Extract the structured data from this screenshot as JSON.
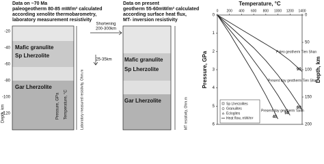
{
  "left_panel": {
    "title": [
      "Data on ~70 Ma",
      "paleogeotherm 80-85 mW/m² calculated",
      "according xenolite thermobarometry,",
      "laboratory measurement resistivity"
    ],
    "layers": [
      "Mafic granulite",
      "Sp Lherzolite",
      "Gar Lherzolite"
    ],
    "depth_ticks": [
      "-20",
      "-40",
      "-60",
      "-80",
      "-100",
      "-120"
    ],
    "depth_label": "Depth, km",
    "pressure_label": "Pressure, GPa",
    "temperature_label": "Temperature, °C",
    "resistivity_label": "Laboratory measured resistivity, Ohm.m"
  },
  "shortening": {
    "label": [
      "Shortening",
      "200-300km"
    ],
    "thickening": "25-35km"
  },
  "middle_panel": {
    "title": [
      "Data on present",
      "geotherm 55-60mW/m² calculated",
      "according surface heat flux,",
      "MT- inversion resistivity"
    ],
    "layers": [
      "Mafic granulite",
      "Sp Lherzolite",
      "Gar Lherzolite"
    ],
    "resistivity_label": "MT resistivity, Ohm.m"
  },
  "chart_data": {
    "type": "line",
    "x_label": "Temperature, °C",
    "y_label": "Pressure, GPa",
    "y2_label": "Depth, km",
    "x": [
      0,
      200,
      400,
      600,
      800,
      1000,
      1200,
      1400
    ],
    "xlim": [
      0,
      1400
    ],
    "xticks": [
      0,
      200,
      400,
      600,
      800,
      1000,
      1200,
      1400
    ],
    "ylim": [
      0,
      6
    ],
    "yticks": [
      0,
      1,
      2,
      3,
      4,
      5,
      6
    ],
    "y2lim": [
      0,
      200
    ],
    "y2ticks": [
      0,
      50,
      100,
      150,
      200
    ],
    "series": [
      {
        "name": "90",
        "color": "#222",
        "values": [
          0,
          0.4,
          0.8,
          1.2,
          1.6,
          2.0,
          2.5,
          3.1
        ]
      },
      {
        "name": "60",
        "color": "#222",
        "values": [
          0,
          0.6,
          1.2,
          1.8,
          2.5,
          3.3,
          4.2,
          5.2
        ]
      },
      {
        "name": "50",
        "color": "#222",
        "values": [
          0,
          0.8,
          1.6,
          2.5,
          3.4,
          4.4,
          5.5,
          null
        ]
      },
      {
        "name": "40",
        "color": "#222",
        "values": [
          0,
          1.0,
          2.1,
          3.2,
          4.4,
          5.7,
          null,
          null
        ]
      }
    ],
    "annotations": [
      "Paleo geotherm Tien Shan",
      "Present day geotherm Tien Shan",
      "Present day geotherm Tarim"
    ],
    "legend": [
      "Sp Lherzolites",
      "Granulites",
      "Eclogites",
      "Heat flow, mW/m²"
    ]
  }
}
